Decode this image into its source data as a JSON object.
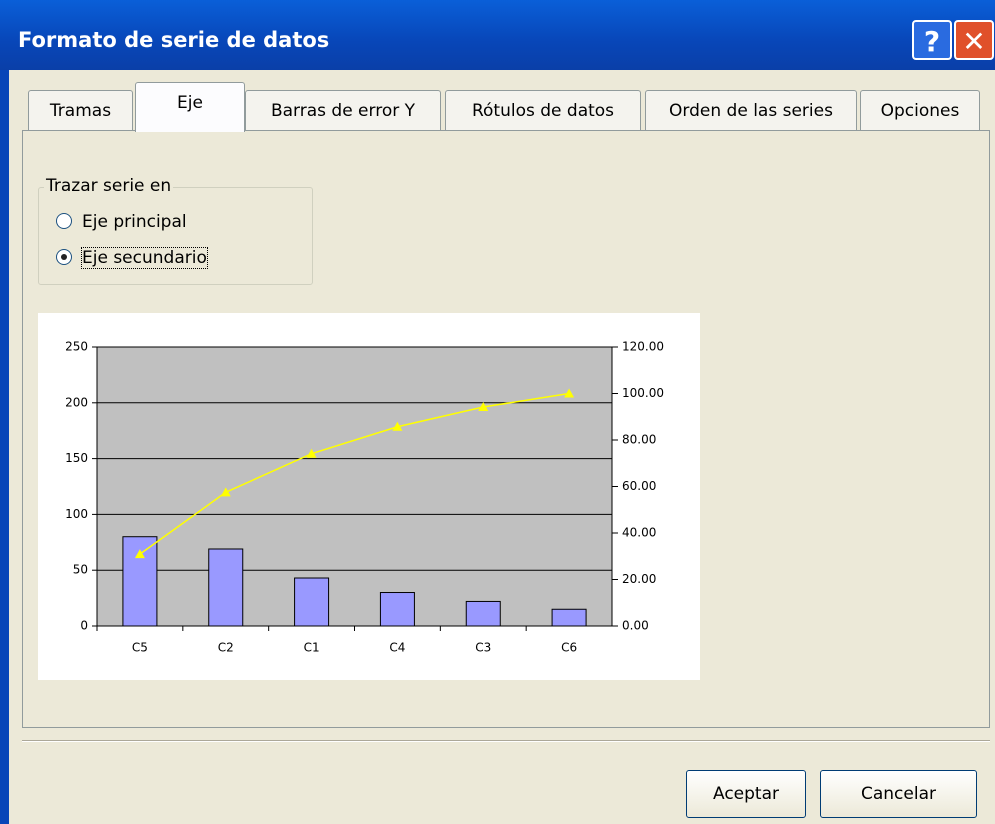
{
  "dialog": {
    "title": "Formato de serie de datos",
    "tabs": [
      "Tramas",
      "Eje",
      "Barras de error Y",
      "Rótulos de datos",
      "Orden de las series",
      "Opciones"
    ],
    "active_tab": 1,
    "group": {
      "label": "Trazar serie en",
      "options": [
        {
          "label": "Eje principal",
          "selected": false
        },
        {
          "label": "Eje secundario",
          "selected": true
        }
      ]
    },
    "buttons": [
      "Aceptar",
      "Cancelar"
    ]
  },
  "chart_data": {
    "type": "bar",
    "categories": [
      "C5",
      "C2",
      "C1",
      "C4",
      "C3",
      "C6"
    ],
    "series": [
      {
        "type": "bar",
        "color": "#9999ff",
        "values": [
          80,
          69,
          43,
          30,
          22,
          15
        ]
      },
      {
        "type": "line",
        "axis": "y2",
        "color": "#ffff00",
        "values": [
          30.9,
          57.5,
          74.1,
          85.7,
          94.2,
          100
        ]
      }
    ],
    "ylim": [
      0,
      250
    ],
    "yticks": [
      0,
      50,
      100,
      150,
      200,
      250
    ],
    "y2lim": [
      0,
      120
    ],
    "y2ticks": [
      {
        "value": 0,
        "label": "0.00"
      },
      {
        "value": 20,
        "label": "20.00"
      },
      {
        "value": 40,
        "label": "40.00"
      },
      {
        "value": 60,
        "label": "60.00"
      },
      {
        "value": 80,
        "label": "80.00"
      },
      {
        "value": 100,
        "label": "100.00"
      },
      {
        "value": 120,
        "label": "120.00"
      }
    ],
    "grid": true,
    "plot_background": "#c0c0c0"
  }
}
